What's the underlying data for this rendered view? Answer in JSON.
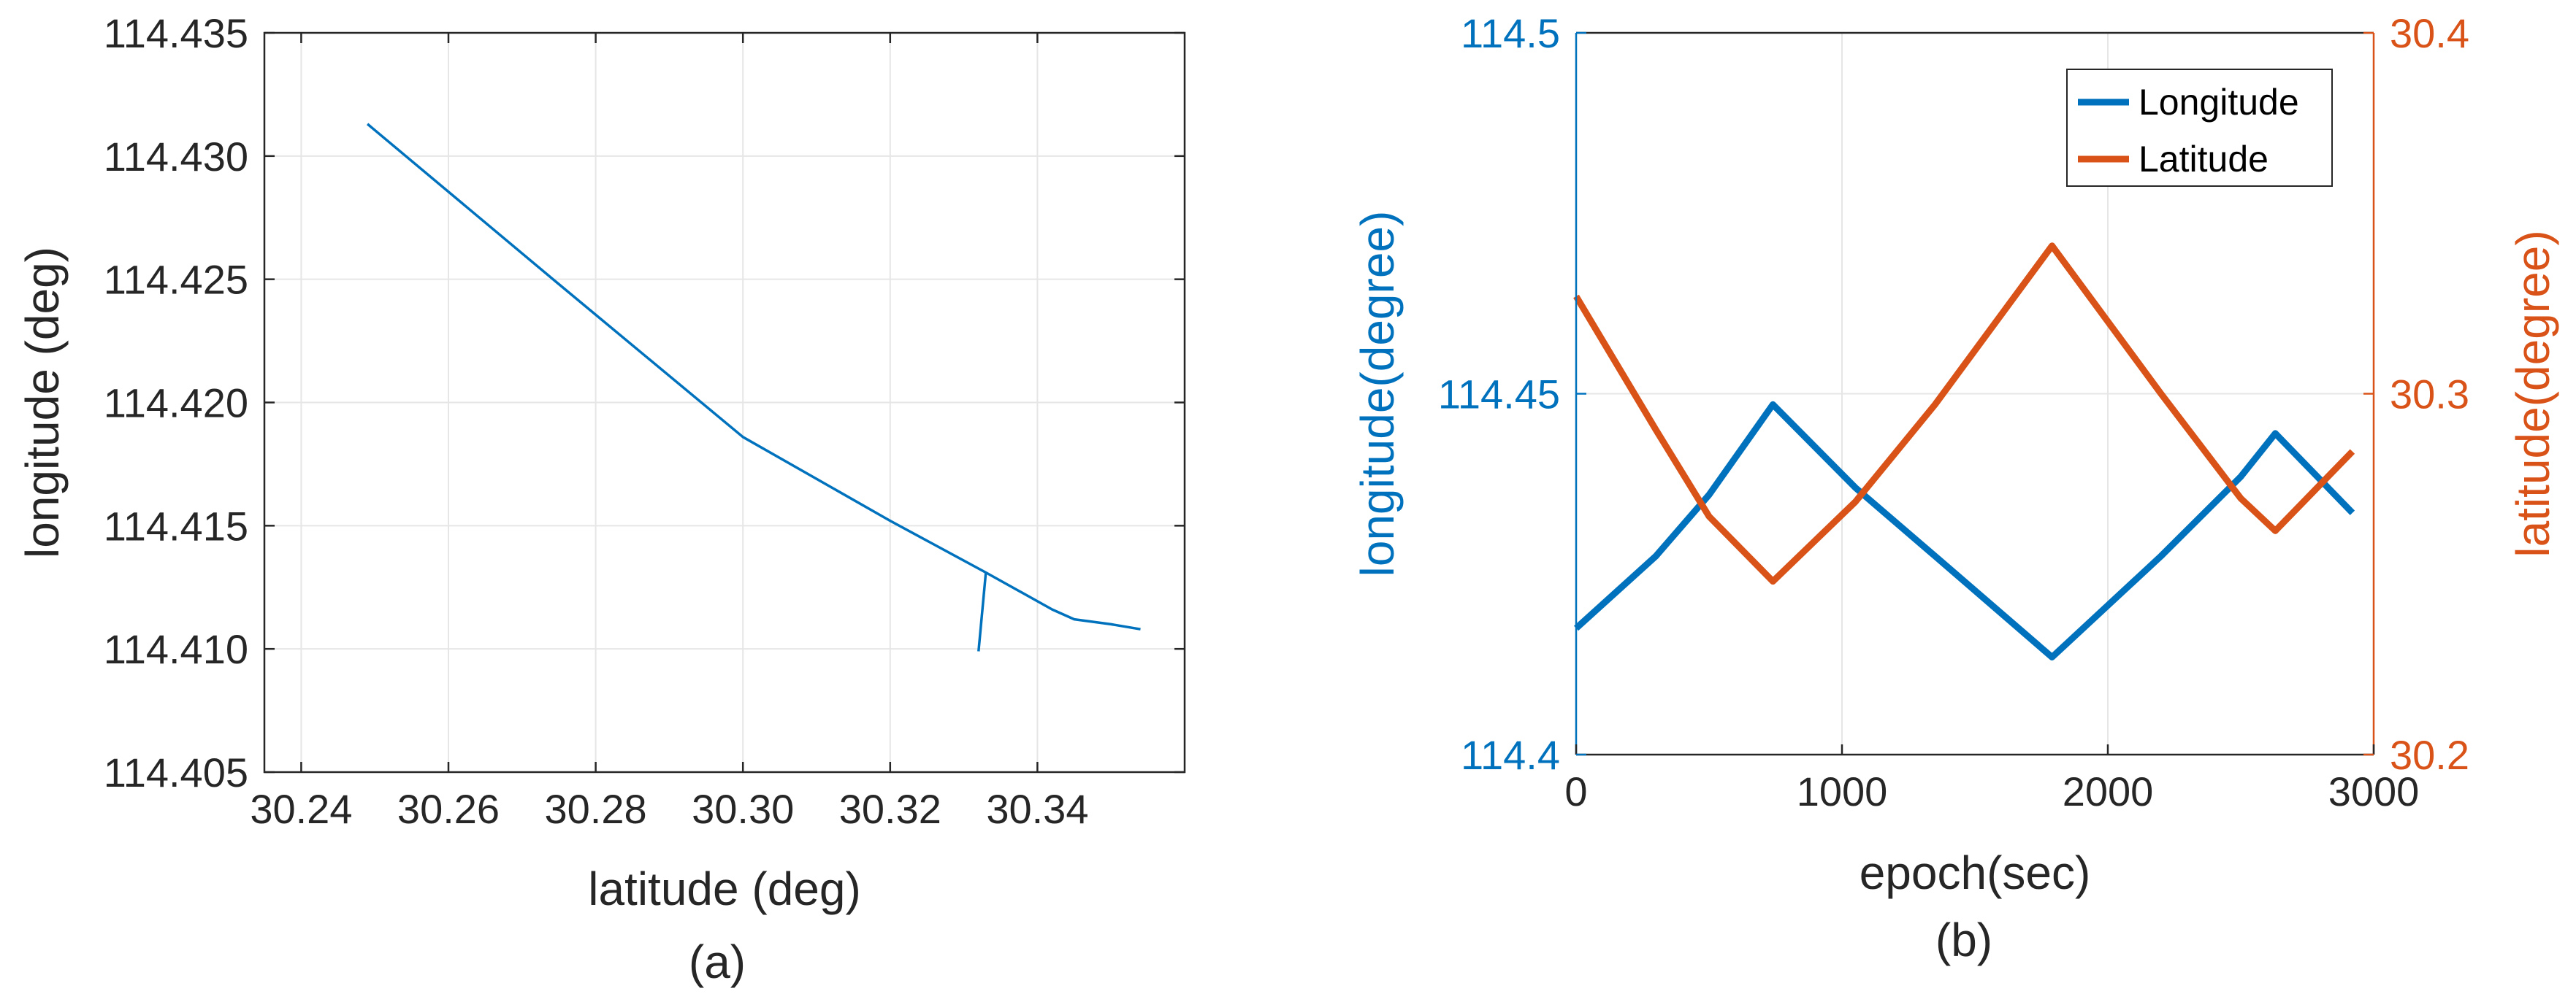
{
  "chart_data": [
    {
      "type": "line",
      "panel_label": "(a)",
      "xlabel": "latitude (deg)",
      "ylabel": "longitude (deg)",
      "xlim": [
        30.235,
        30.36
      ],
      "ylim": [
        114.405,
        114.435
      ],
      "x_ticks": [
        "30.24",
        "30.26",
        "30.28",
        "30.30",
        "30.32",
        "30.34"
      ],
      "y_ticks": [
        "114.405",
        "114.410",
        "114.415",
        "114.420",
        "114.425",
        "114.430",
        "114.435"
      ],
      "grid": true,
      "colors": {
        "line": "#0072BD",
        "axis": "#262626",
        "grid": "#e6e6e6"
      },
      "series": [
        {
          "x": [
            30.249,
            30.275,
            30.3,
            30.32,
            30.333,
            30.342,
            30.345,
            30.35,
            30.354
          ],
          "y": [
            114.4313,
            114.4248,
            114.4186,
            114.4152,
            114.4131,
            114.4116,
            114.4112,
            114.411,
            114.4108
          ]
        },
        {
          "x": [
            30.333,
            30.332
          ],
          "y": [
            114.4131,
            114.4099
          ]
        }
      ]
    },
    {
      "type": "line",
      "panel_label": "(b)",
      "xlabel": "epoch(sec)",
      "ylabel_left": "longitude(degree)",
      "ylabel_right": "latitude(degree)",
      "xlim": [
        0,
        3000
      ],
      "ylim_left": [
        114.4,
        114.5
      ],
      "ylim_right": [
        30.2,
        30.4
      ],
      "x_ticks": [
        "0",
        "1000",
        "2000",
        "3000"
      ],
      "y_ticks_left": [
        "114.4",
        "114.45",
        "114.5"
      ],
      "y_ticks_right": [
        "30.2",
        "30.3",
        "30.4"
      ],
      "grid": true,
      "legend": {
        "position": "top-right",
        "entries": [
          "Longitude",
          "Latitude"
        ]
      },
      "colors": {
        "longitude": "#0072BD",
        "latitude": "#D95319",
        "axis": "#262626",
        "grid": "#e6e6e6"
      },
      "series": [
        {
          "name": "Longitude",
          "axis": "left",
          "x": [
            0,
            300,
            500,
            740,
            1050,
            1350,
            1790,
            2200,
            2500,
            2630,
            2920
          ],
          "y": [
            114.4175,
            114.4275,
            114.436,
            114.4485,
            114.437,
            114.4275,
            114.4135,
            114.4275,
            114.4385,
            114.4445,
            114.4335
          ]
        },
        {
          "name": "Latitude",
          "axis": "right",
          "x": [
            0,
            300,
            500,
            740,
            1050,
            1350,
            1790,
            2200,
            2500,
            2630,
            2920
          ],
          "y": [
            30.327,
            30.29,
            30.266,
            30.248,
            30.27,
            30.297,
            30.341,
            30.3,
            30.271,
            30.262,
            30.284
          ]
        }
      ]
    }
  ]
}
